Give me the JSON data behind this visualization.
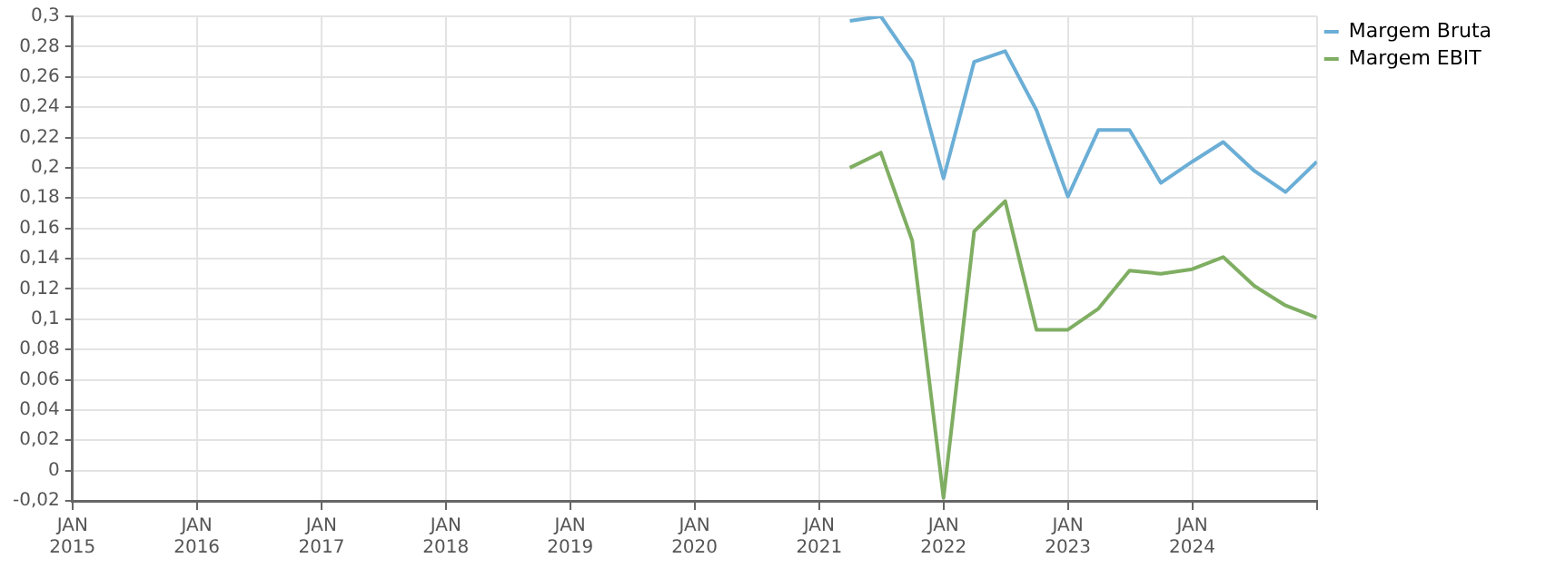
{
  "chart_data": {
    "type": "line",
    "x": [
      "2021-04",
      "2021-07",
      "2021-10",
      "2022-01",
      "2022-04",
      "2022-07",
      "2022-10",
      "2023-01",
      "2023-04",
      "2023-07",
      "2023-10",
      "2024-01",
      "2024-04",
      "2024-07",
      "2024-10",
      "2025-01"
    ],
    "series": [
      {
        "name": "Margem Bruta",
        "color": "#6baed6",
        "values": [
          0.297,
          0.3,
          0.27,
          0.193,
          0.27,
          0.277,
          0.238,
          0.181,
          0.225,
          0.225,
          0.19,
          0.204,
          0.217,
          0.198,
          0.184,
          0.204
        ]
      },
      {
        "name": "Margem EBIT",
        "color": "#7fae62",
        "values": [
          0.2,
          0.21,
          0.152,
          -0.018,
          0.158,
          0.178,
          0.093,
          0.093,
          0.107,
          0.132,
          0.13,
          0.133,
          0.141,
          0.122,
          0.109,
          0.101
        ]
      }
    ],
    "xlim": [
      "2015-01",
      "2025-01"
    ],
    "xticks": [
      {
        "value": "2015-01",
        "label": "JAN 2015"
      },
      {
        "value": "2016-01",
        "label": "JAN 2016"
      },
      {
        "value": "2017-01",
        "label": "JAN 2017"
      },
      {
        "value": "2018-01",
        "label": "JAN 2018"
      },
      {
        "value": "2019-01",
        "label": "JAN 2019"
      },
      {
        "value": "2020-01",
        "label": "JAN 2020"
      },
      {
        "value": "2021-01",
        "label": "JAN 2021"
      },
      {
        "value": "2022-01",
        "label": "JAN 2022"
      },
      {
        "value": "2023-01",
        "label": "JAN 2023"
      },
      {
        "value": "2024-01",
        "label": "JAN 2024"
      },
      {
        "value": "2025-01",
        "label": null
      }
    ],
    "ylim": [
      -0.02,
      0.3
    ],
    "yticks": [
      {
        "value": -0.02,
        "label": "-0,02"
      },
      {
        "value": 0,
        "label": "0"
      },
      {
        "value": 0.02,
        "label": "0,02"
      },
      {
        "value": 0.04,
        "label": "0,04"
      },
      {
        "value": 0.06,
        "label": "0,06"
      },
      {
        "value": 0.08,
        "label": "0,08"
      },
      {
        "value": 0.1,
        "label": "0,1"
      },
      {
        "value": 0.12,
        "label": "0,12"
      },
      {
        "value": 0.14,
        "label": "0,14"
      },
      {
        "value": 0.16,
        "label": "0,16"
      },
      {
        "value": 0.18,
        "label": "0,18"
      },
      {
        "value": 0.2,
        "label": "0,2"
      },
      {
        "value": 0.22,
        "label": "0,22"
      },
      {
        "value": 0.24,
        "label": "0,24"
      },
      {
        "value": 0.26,
        "label": "0,26"
      },
      {
        "value": 0.28,
        "label": "0,28"
      },
      {
        "value": 0.3,
        "label": "0,3"
      }
    ],
    "grid": true,
    "legend": "top right",
    "marker": "none"
  }
}
